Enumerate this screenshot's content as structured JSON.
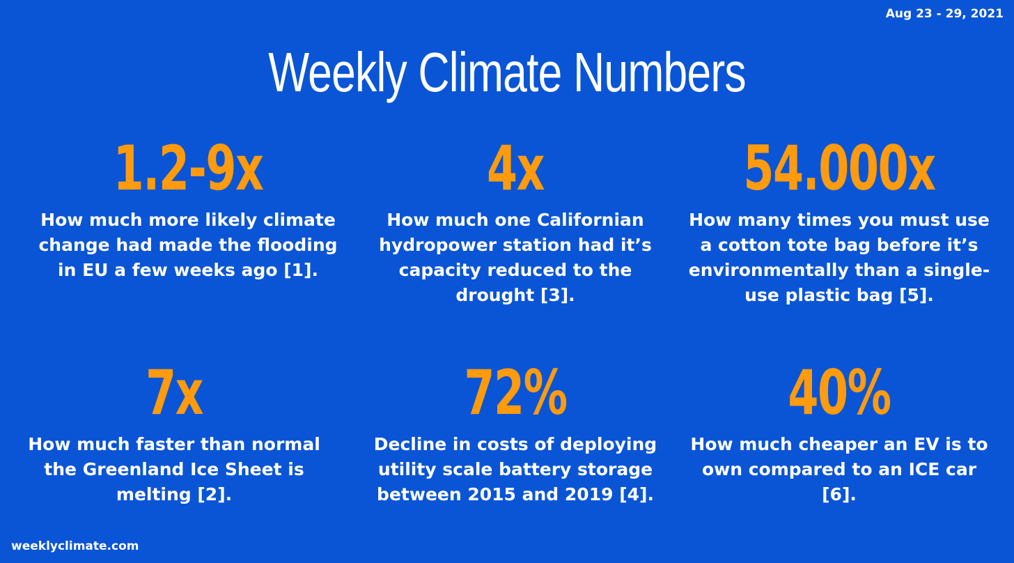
{
  "header": {
    "date_range": "Aug 23 - 29, 2021",
    "title": "Weekly Climate Numbers"
  },
  "colors": {
    "background": "#0a55d6",
    "stat": "#ff9b0d",
    "text": "#ffffff"
  },
  "stats": [
    {
      "value": "1.2-9x",
      "description": "How much more likely climate change had made the flooding in EU a few weeks ago [1]."
    },
    {
      "value": "4x",
      "description": "How much one Californian hydropower station had it’s capacity reduced to the drought [3]."
    },
    {
      "value": "54.000x",
      "description": "How many times you must use a cotton tote bag before it’s environmentally than a single-use plastic bag [5]."
    },
    {
      "value": "7x",
      "description": "How much faster than normal the Greenland Ice Sheet is melting [2]."
    },
    {
      "value": "72%",
      "description": "Decline in costs of deploying utility scale battery storage between 2015 and 2019 [4]."
    },
    {
      "value": "40%",
      "description": "How much cheaper an EV is to own compared to an ICE car [6]."
    }
  ],
  "footer": {
    "site": "weeklyclimate.com"
  }
}
